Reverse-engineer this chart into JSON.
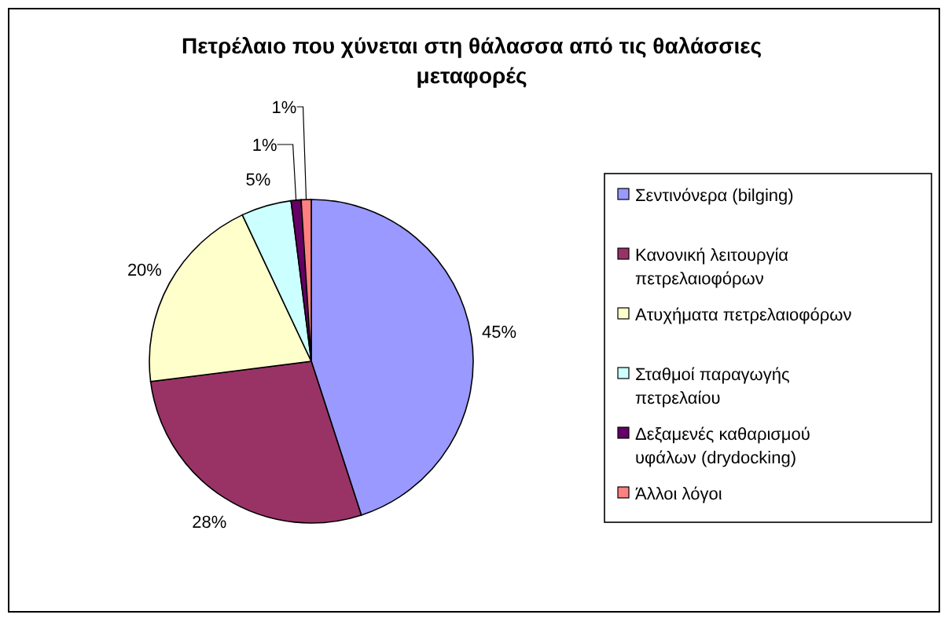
{
  "chart_data": {
    "type": "pie",
    "title": "Πετρέλαιο που χύνεται στη θάλασσα από τις θαλάσσιες μεταφορές",
    "categories": [
      "Σεντινόνερα (bilging)",
      "Κανονική λειτουργία πετρελαιοφόρων",
      "Ατυχήματα πετρελαιοφόρων",
      "Σταθμοί παραγωγής πετρελαίου",
      "Δεξαμενές καθαρισμού υφάλων (drydocking)",
      "Άλλοι λόγοι"
    ],
    "values": [
      45,
      28,
      20,
      5,
      1,
      1
    ],
    "colors": [
      "#9999ff",
      "#993366",
      "#ffffcc",
      "#ccffff",
      "#660066",
      "#ff8080"
    ],
    "value_labels": [
      "45%",
      "28%",
      "20%",
      "5%",
      "1%",
      "1%"
    ],
    "legend": "right"
  }
}
